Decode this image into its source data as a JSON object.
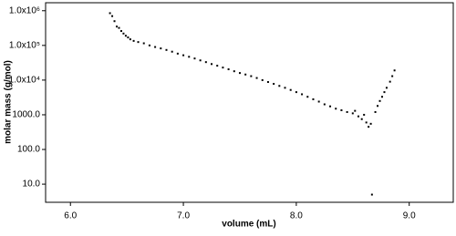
{
  "chart_data": {
    "type": "scatter",
    "x_label": "volume (mL)",
    "y_label": "molar mass (g/mol)",
    "log_y": true,
    "color": "#000000",
    "xlim": [
      5.78,
      9.39
    ],
    "xticks": [
      {
        "value": 6,
        "label": "6.0"
      },
      {
        "value": 7,
        "label": "7.0"
      },
      {
        "value": 8,
        "label": "8.0"
      },
      {
        "value": 9,
        "label": "9.0"
      }
    ],
    "ylim": [
      3,
      1700000
    ],
    "yticks": [
      {
        "value": 10,
        "label": "10.0"
      },
      {
        "value": 100,
        "label": "100.0"
      },
      {
        "value": 1000,
        "label": "1000.0"
      },
      {
        "value": 10000,
        "label": "1.0x10⁴"
      },
      {
        "value": 100000,
        "label": "1.0x10⁵"
      },
      {
        "value": 1000000,
        "label": "1.0x10⁶"
      }
    ],
    "x": [
      6.35,
      6.37,
      6.39,
      6.41,
      6.43,
      6.45,
      6.47,
      6.49,
      6.51,
      6.53,
      6.56,
      6.6,
      6.65,
      6.7,
      6.75,
      6.8,
      6.85,
      6.9,
      6.95,
      7.0,
      7.05,
      7.1,
      7.15,
      7.2,
      7.25,
      7.3,
      7.35,
      7.4,
      7.45,
      7.5,
      7.55,
      7.6,
      7.65,
      7.7,
      7.75,
      7.8,
      7.85,
      7.9,
      7.95,
      8.0,
      8.05,
      8.1,
      8.15,
      8.2,
      8.25,
      8.3,
      8.35,
      8.4,
      8.45,
      8.5,
      8.52,
      8.55,
      8.58,
      8.6,
      8.62,
      8.64,
      8.66,
      8.67,
      8.7,
      8.72,
      8.74,
      8.76,
      8.78,
      8.8,
      8.83,
      8.85,
      8.87
    ],
    "values": [
      850000,
      700000,
      500000,
      350000,
      320000,
      260000,
      220000,
      190000,
      170000,
      150000,
      135000,
      125000,
      115000,
      100000,
      90000,
      82000,
      74000,
      66000,
      58000,
      52000,
      47000,
      42000,
      37000,
      33000,
      29000,
      26000,
      23000,
      20500,
      18000,
      16000,
      14500,
      13000,
      11500,
      10000,
      8800,
      7800,
      6800,
      6000,
      5200,
      4500,
      3900,
      3300,
      2800,
      2400,
      2000,
      1750,
      1500,
      1350,
      1200,
      1100,
      1300,
      900,
      750,
      1000,
      600,
      450,
      550,
      5,
      1200,
      1800,
      2500,
      3300,
      4500,
      6000,
      9000,
      13000,
      19000
    ]
  }
}
